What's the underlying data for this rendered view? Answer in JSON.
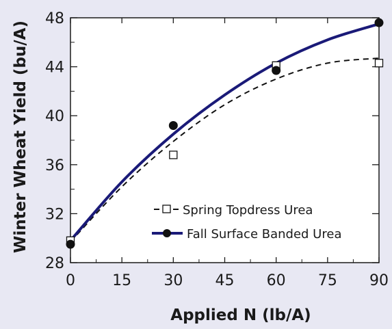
{
  "chart_data": {
    "type": "scatter",
    "xlabel": "Applied N (lb/A)",
    "ylabel": "Winter Wheat Yield (bu/A)",
    "xlim": [
      0,
      90
    ],
    "ylim": [
      28,
      48
    ],
    "xticks": [
      0,
      15,
      30,
      45,
      60,
      75,
      90
    ],
    "yticks": [
      28,
      32,
      36,
      40,
      44,
      48
    ],
    "grid": false,
    "legend_position": "bottom-right",
    "series": [
      {
        "name": "Spring Topdress Urea",
        "marker": "open-square",
        "line_style": "dashed",
        "color": "#111111",
        "points": [
          {
            "x": 0,
            "y": 29.8
          },
          {
            "x": 30,
            "y": 36.8
          },
          {
            "x": 60,
            "y": 44.1
          },
          {
            "x": 90,
            "y": 44.3
          }
        ],
        "fit_points": [
          {
            "x": 0,
            "y": 29.7
          },
          {
            "x": 15,
            "y": 34.2
          },
          {
            "x": 30,
            "y": 37.9
          },
          {
            "x": 45,
            "y": 40.9
          },
          {
            "x": 60,
            "y": 43.0
          },
          {
            "x": 75,
            "y": 44.3
          },
          {
            "x": 90,
            "y": 44.7
          }
        ]
      },
      {
        "name": "Fall Surface Banded Urea",
        "marker": "filled-circle",
        "line_style": "solid",
        "color": "#1a1a78",
        "points": [
          {
            "x": 0,
            "y": 29.5
          },
          {
            "x": 30,
            "y": 39.2
          },
          {
            "x": 60,
            "y": 43.7
          },
          {
            "x": 90,
            "y": 47.6
          }
        ],
        "fit_points": [
          {
            "x": 0,
            "y": 29.8
          },
          {
            "x": 15,
            "y": 34.6
          },
          {
            "x": 30,
            "y": 38.5
          },
          {
            "x": 45,
            "y": 41.7
          },
          {
            "x": 60,
            "y": 44.3
          },
          {
            "x": 75,
            "y": 46.2
          },
          {
            "x": 90,
            "y": 47.5
          }
        ]
      }
    ]
  }
}
